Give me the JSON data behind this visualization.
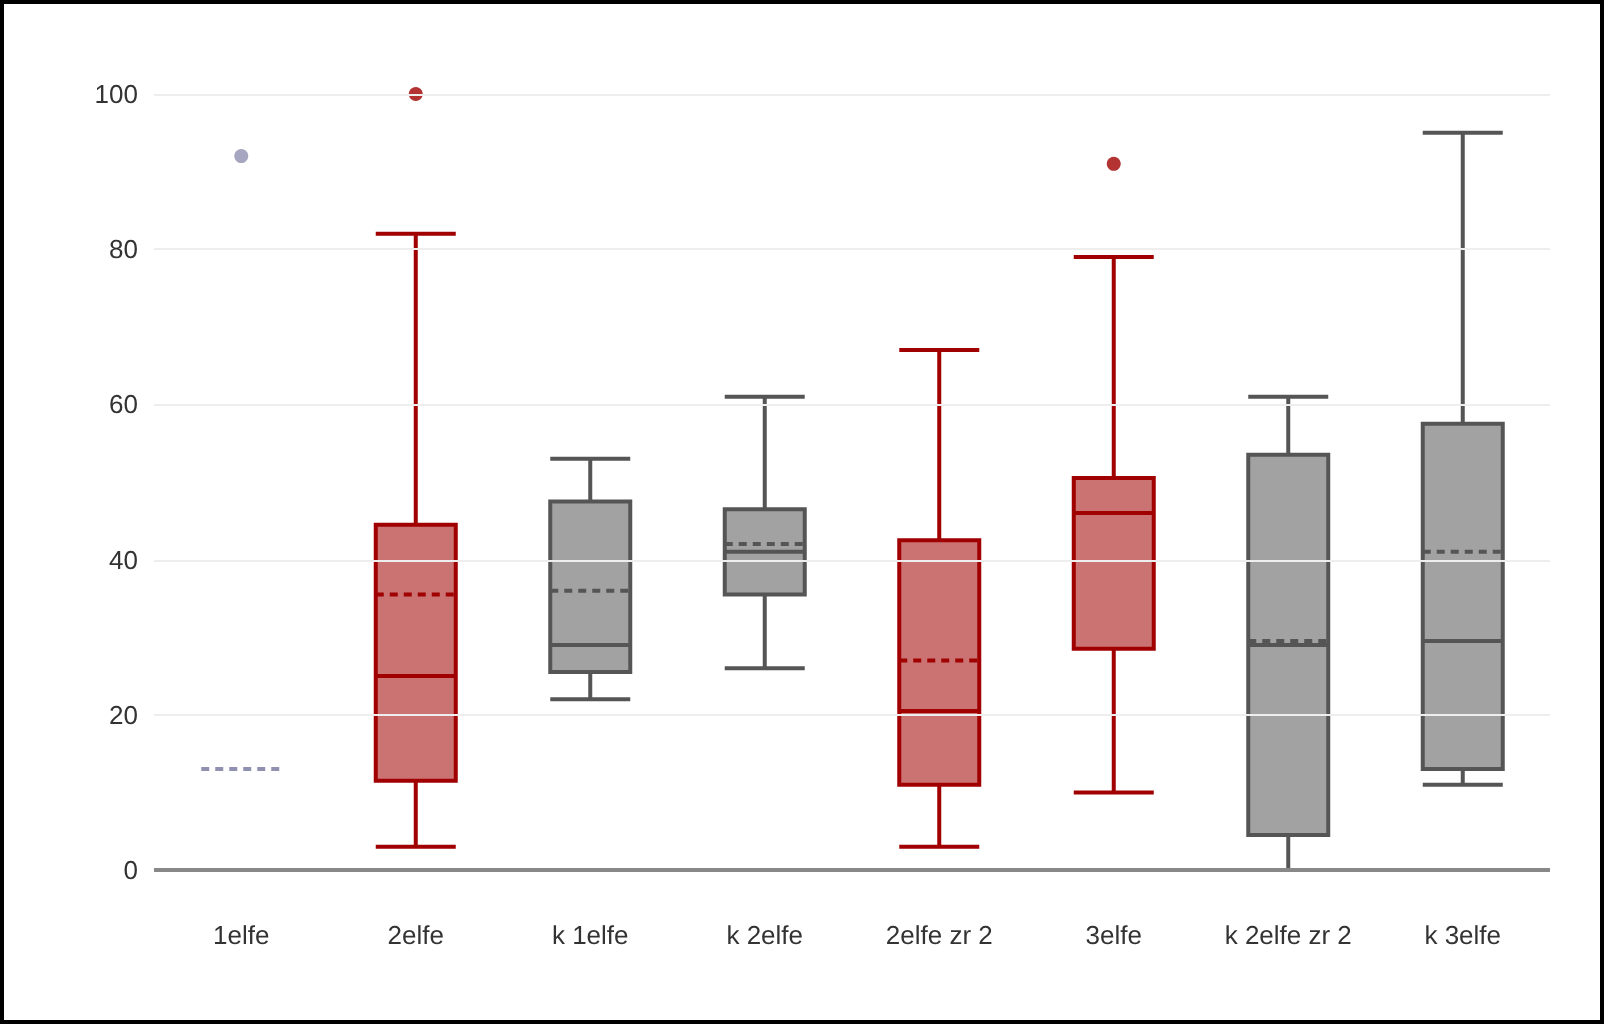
{
  "chart_data": {
    "type": "box",
    "categories": [
      "1elfe",
      "2elfe",
      "k 1elfe",
      "k 2elfe",
      "2elfe zr 2",
      "3elfe",
      "k 2elfe zr 2",
      "k 3elfe"
    ],
    "boxes": [
      {
        "low": 0,
        "q1": 0,
        "median": 0,
        "q3": 0,
        "high": 0,
        "mean": 13,
        "outliers": [
          92
        ]
      },
      {
        "low": 3,
        "q1": 11.5,
        "median": 25,
        "q3": 44.5,
        "high": 82,
        "mean": 35.5,
        "outliers": [
          100
        ]
      },
      {
        "low": 22,
        "q1": 25.5,
        "median": 29,
        "q3": 47.5,
        "high": 53,
        "mean": 36
      },
      {
        "low": 26,
        "q1": 35.5,
        "median": 41,
        "q3": 46.5,
        "high": 61,
        "mean": 42
      },
      {
        "low": 3,
        "q1": 11,
        "median": 20.5,
        "q3": 42.5,
        "high": 67,
        "mean": 27
      },
      {
        "low": 10,
        "q1": 28.5,
        "median": 46,
        "q3": 50.5,
        "high": 79,
        "mean": 46,
        "outliers": [
          91
        ]
      },
      {
        "low": 0,
        "q1": 4.5,
        "median": 29,
        "q3": 53.5,
        "high": 61,
        "mean": 29.5
      },
      {
        "low": 11,
        "q1": 13,
        "median": 29.5,
        "q3": 57.5,
        "high": 95,
        "mean": 41
      }
    ],
    "colors": [
      "#9090b0",
      "#a00000",
      "#555555",
      "#555555",
      "#a00000",
      "#a00000",
      "#555555",
      "#555555"
    ],
    "ylim": [
      0,
      100
    ],
    "yticks": [
      0,
      20,
      40,
      60,
      80,
      100
    ],
    "grid": "y"
  }
}
